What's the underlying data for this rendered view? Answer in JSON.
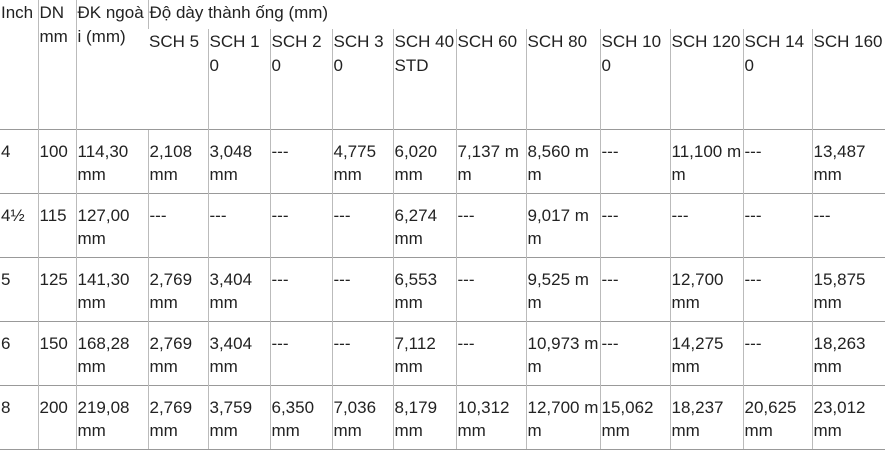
{
  "header": {
    "inch": "Inch",
    "dn": "DN mm",
    "dk": "ĐK ngoài (mm)",
    "thickness": "Độ dày thành ống (mm)",
    "schedules": [
      "SCH 5",
      "SCH 10",
      "SCH 20",
      "SCH 30",
      "SCH 40 STD",
      "SCH 60",
      "SCH 80",
      "SCH 100",
      "SCH 120",
      "SCH 140",
      "SCH 160"
    ]
  },
  "rows": [
    [
      "4",
      "100",
      "114,30 mm",
      "2,108 mm",
      "3,048 mm",
      "---",
      "4,775 mm",
      "6,020 mm",
      "7,137 mm",
      "8,560 mm",
      "---",
      "11,100 mm",
      "---",
      "13,487 mm"
    ],
    [
      "4½",
      "115",
      "127,00 mm",
      "---",
      "---",
      "---",
      "---",
      "6,274 mm",
      "---",
      "9,017 mm",
      "---",
      "---",
      "---",
      "---"
    ],
    [
      "5",
      "125",
      "141,30 mm",
      "2,769 mm",
      "3,404 mm",
      "---",
      "---",
      "6,553 mm",
      "---",
      "9,525 mm",
      "---",
      "12,700 mm",
      "---",
      "15,875 mm"
    ],
    [
      "6",
      "150",
      "168,28 mm",
      "2,769 mm",
      "3,404 mm",
      "---",
      "---",
      "7,112 mm",
      "---",
      "10,973 mm",
      "---",
      "14,275 mm",
      "---",
      "18,263 mm"
    ],
    [
      "8",
      "200",
      "219,08 mm",
      "2,769 mm",
      "3,759 mm",
      "6,350 mm",
      "7,036 mm",
      "8,179 mm",
      "10,312 mm",
      "12,700 mm",
      "15,062 mm",
      "18,237 mm",
      "20,625 mm",
      "23,012 mm"
    ]
  ]
}
